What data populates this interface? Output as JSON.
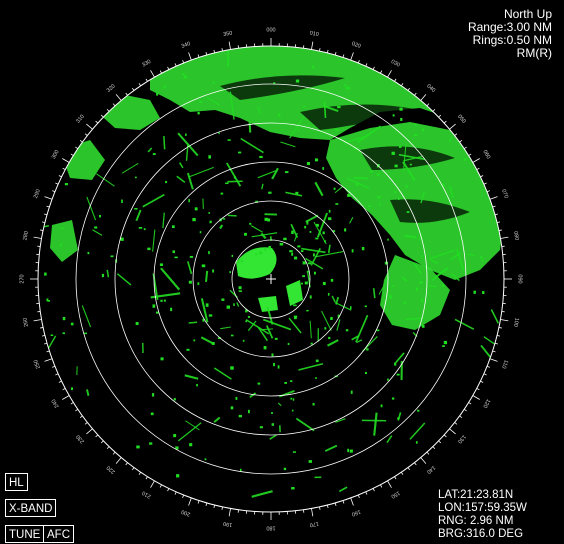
{
  "display": {
    "orientation": "North Up",
    "range": "Range:3.00 NM",
    "rings": "Rings:0.50 NM",
    "motion": "RM(R)"
  },
  "controls": {
    "hl": "HL",
    "band": "X-BAND",
    "tune": "TUNE",
    "afc": "AFC"
  },
  "cursor": {
    "lat": "LAT:21:23.81N",
    "lon": "LON:157:59.35W",
    "rng": "RNG:  2.96 NM",
    "brg": "BRG:316.0 DEG"
  },
  "bearing_labels": [
    "000",
    "010",
    "020",
    "030",
    "040",
    "050",
    "060",
    "070",
    "080",
    "090",
    "100",
    "110",
    "120",
    "130",
    "140",
    "150",
    "160",
    "170",
    "180",
    "190",
    "200",
    "210",
    "220",
    "230",
    "240",
    "250",
    "260",
    "270",
    "280",
    "290",
    "300",
    "310",
    "320",
    "330",
    "340",
    "350"
  ],
  "colors": {
    "echo": "#22dd22",
    "echo_dense": "#33e633",
    "rings": "#ffffff",
    "text": "#ffffff"
  }
}
